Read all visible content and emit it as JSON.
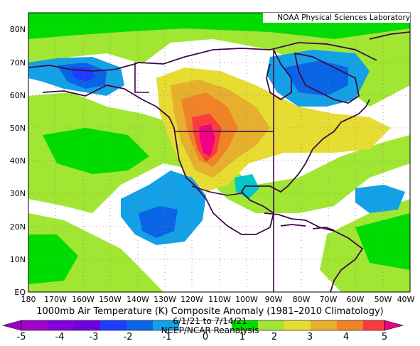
{
  "credit": "NOAA Physical Sciences Laboratory",
  "title": "1000mb Air Temperature (K) Composite Anomaly (1981–2010 Climatology)",
  "dates": "6/1/21 to 7/14/21",
  "source": "NCEP/NCAR Reanalysis",
  "lat_ticks": [
    "80N",
    "70N",
    "60N",
    "50N",
    "40N",
    "30N",
    "20N",
    "10N",
    "EQ"
  ],
  "lon_ticks": [
    "180",
    "170W",
    "160W",
    "150W",
    "140W",
    "130W",
    "120W",
    "110W",
    "100W",
    "90W",
    "80W",
    "70W",
    "60W",
    "50W",
    "40W"
  ],
  "colorbar": {
    "ticks": [
      "-5",
      "-4",
      "-3",
      "-2",
      "-1",
      "0",
      "1",
      "2",
      "3",
      "4",
      "5"
    ],
    "colors": [
      "#a000c8",
      "#8200dc",
      "#6e00dc",
      "#1e3cff",
      "#0a64e6",
      "#14a0e6",
      "#00c8c8",
      "#00dc00",
      "#a0e632",
      "#e6dc32",
      "#e6af2d",
      "#f08228",
      "#fa3c3c",
      "#f00082"
    ]
  },
  "chart_data": {
    "type": "heatmap",
    "variable": "1000mb Air Temperature (K) Composite Anomaly",
    "period": "6/1/21 to 7/14/21",
    "range": [
      -5,
      5
    ],
    "lat_range": [
      "EQ",
      "85N"
    ],
    "lon_range": [
      "180",
      "40W"
    ],
    "features": [
      {
        "region": "Pacific Northwest / Great Basin",
        "value": 4.5
      },
      {
        "region": "Alaska",
        "value": -2
      },
      {
        "region": "Hudson Bay / Eastern Canada",
        "value": -1.5
      },
      {
        "region": "Eastern Pacific off Baja",
        "value": -1.5
      },
      {
        "region": "Western Atlantic near 25N",
        "value": -1
      }
    ]
  }
}
